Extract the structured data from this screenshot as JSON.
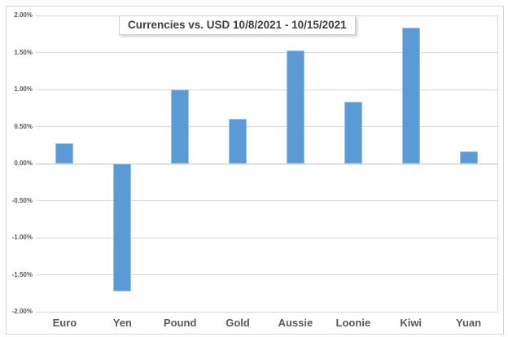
{
  "chart_data": {
    "type": "bar",
    "title": "Currencies vs. USD 10/8/2021 - 10/15/2021",
    "categories": [
      "Euro",
      "Yen",
      "Pound",
      "Gold",
      "Aussie",
      "Loonie",
      "Kiwi",
      "Yuan"
    ],
    "values": [
      0.28,
      -1.73,
      1.0,
      0.6,
      1.53,
      0.84,
      1.84,
      0.17
    ],
    "unit": "%",
    "xlabel": "",
    "ylabel": "",
    "ylim": [
      -2.0,
      2.0
    ],
    "ytick_step": 0.5,
    "ytick_labels": [
      "2.00%",
      "1.50%",
      "1.00%",
      "0.50%",
      "0.00%",
      "-0.50%",
      "-1.00%",
      "-1.50%",
      "-2.00%"
    ],
    "grid": true,
    "legend": "none",
    "colors": {
      "bar_fill": "#5b9bd5",
      "bar_border": "#9cc3e8",
      "gridline": "#d9d9d9",
      "zero_line": "#bfbfbf",
      "tick_label": "#595959",
      "title_text": "#3f3f3f",
      "chart_border": "#d6d6d6"
    }
  }
}
